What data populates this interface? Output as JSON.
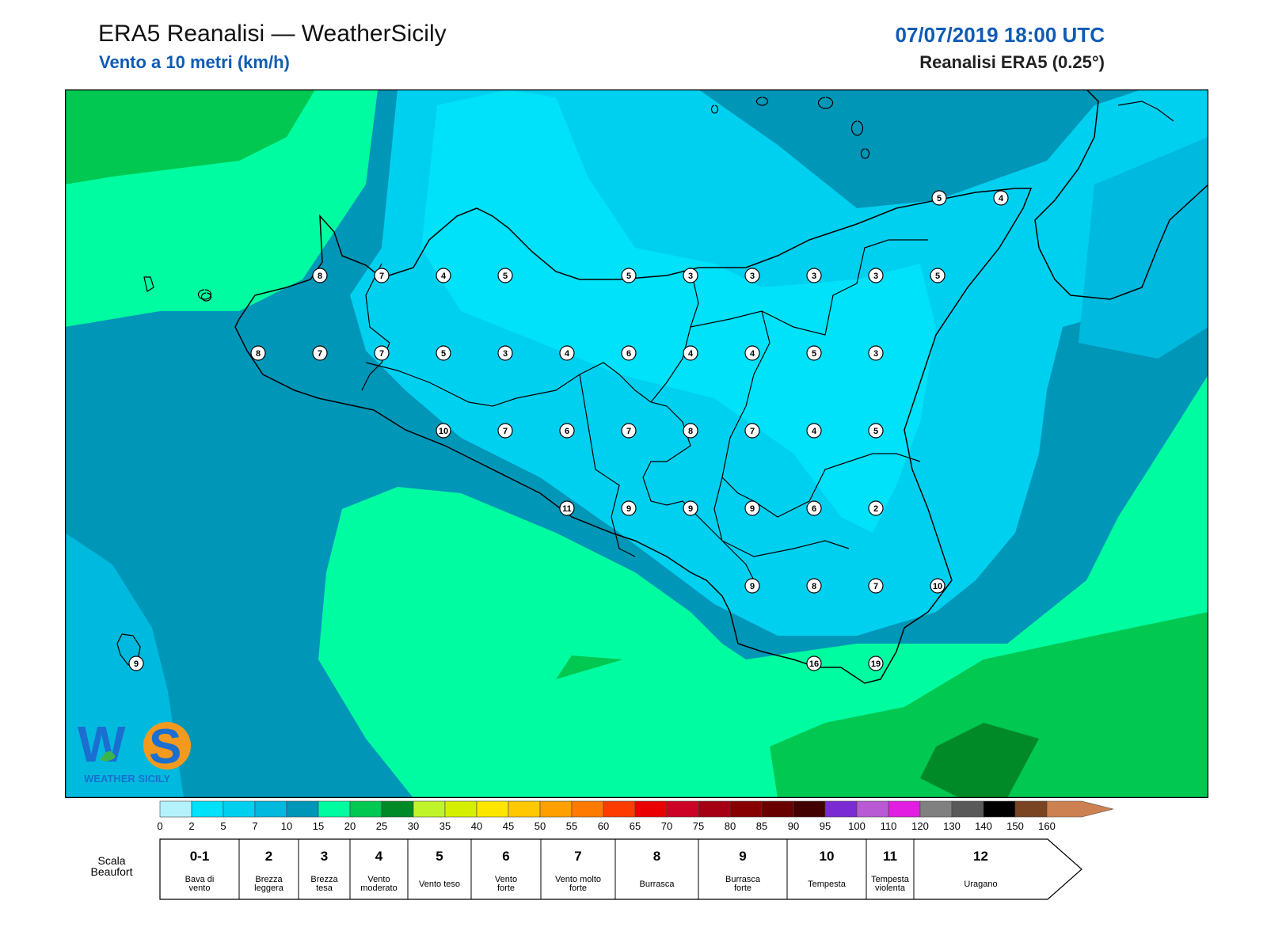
{
  "header": {
    "title": "ERA5 Reanalisi — WeatherSicily",
    "subtitle": "Vento a 10 metri (km/h)",
    "datetime": "07/07/2019 18:00 UTC",
    "source": "Reanalisi ERA5 (0.25°)"
  },
  "station_values": [
    {
      "id": "messina-a",
      "value": "5"
    },
    {
      "id": "messina-b",
      "value": "4"
    },
    {
      "id": "r1c1",
      "value": "8"
    },
    {
      "id": "r1c2",
      "value": "7"
    },
    {
      "id": "r1c3",
      "value": "4"
    },
    {
      "id": "r1c4",
      "value": "5"
    },
    {
      "id": "r1c5",
      "value": "5"
    },
    {
      "id": "r1c6",
      "value": "3"
    },
    {
      "id": "r1c7",
      "value": "3"
    },
    {
      "id": "r1c8",
      "value": "3"
    },
    {
      "id": "r1c9",
      "value": "3"
    },
    {
      "id": "r1c10",
      "value": "5"
    },
    {
      "id": "r2c1",
      "value": "8"
    },
    {
      "id": "r2c2",
      "value": "7"
    },
    {
      "id": "r2c3",
      "value": "7"
    },
    {
      "id": "r2c4",
      "value": "5"
    },
    {
      "id": "r2c5",
      "value": "3"
    },
    {
      "id": "r2c6",
      "value": "4"
    },
    {
      "id": "r2c7",
      "value": "6"
    },
    {
      "id": "r2c8",
      "value": "4"
    },
    {
      "id": "r2c9",
      "value": "4"
    },
    {
      "id": "r2c10",
      "value": "5"
    },
    {
      "id": "r2c11",
      "value": "3"
    },
    {
      "id": "r3c1",
      "value": "10"
    },
    {
      "id": "r3c2",
      "value": "7"
    },
    {
      "id": "r3c3",
      "value": "6"
    },
    {
      "id": "r3c4",
      "value": "7"
    },
    {
      "id": "r3c5",
      "value": "8"
    },
    {
      "id": "r3c6",
      "value": "7"
    },
    {
      "id": "r3c7",
      "value": "4"
    },
    {
      "id": "r3c8",
      "value": "5"
    },
    {
      "id": "r4c1",
      "value": "11"
    },
    {
      "id": "r4c2",
      "value": "9"
    },
    {
      "id": "r4c3",
      "value": "9"
    },
    {
      "id": "r4c4",
      "value": "9"
    },
    {
      "id": "r4c5",
      "value": "6"
    },
    {
      "id": "r4c6",
      "value": "2"
    },
    {
      "id": "r5c1",
      "value": "9"
    },
    {
      "id": "r5c2",
      "value": "8"
    },
    {
      "id": "r5c3",
      "value": "7"
    },
    {
      "id": "r5c4",
      "value": "10"
    },
    {
      "id": "pantelleria",
      "value": "9"
    },
    {
      "id": "s1",
      "value": "16"
    },
    {
      "id": "s2",
      "value": "19"
    }
  ],
  "colorbar": {
    "ticks": [
      "0",
      "2",
      "5",
      "7",
      "10",
      "15",
      "20",
      "25",
      "30",
      "35",
      "40",
      "45",
      "50",
      "55",
      "60",
      "65",
      "70",
      "75",
      "80",
      "85",
      "90",
      "95",
      "100",
      "110",
      "120",
      "130",
      "140",
      "150",
      "160"
    ],
    "colors": [
      "#b3f2fb",
      "#00e1fa",
      "#00d0f0",
      "#00b9de",
      "#0096b8",
      "#00fca0",
      "#00c850",
      "#008a27",
      "#bff528",
      "#d4f000",
      "#ffe600",
      "#ffc800",
      "#ffa000",
      "#ff7a00",
      "#ff3c00",
      "#eb0000",
      "#cd0026",
      "#a60014",
      "#870000",
      "#690000",
      "#430000",
      "#7b2bd4",
      "#b85ad4",
      "#e11ee1",
      "#808080",
      "#595959",
      "#000000",
      "#7a4423",
      "#cd8150"
    ]
  },
  "beaufort": {
    "label": "Scala\nBeaufort",
    "items": [
      {
        "force": "0-1",
        "desc": "Bava di\nvento"
      },
      {
        "force": "2",
        "desc": "Brezza\nleggera"
      },
      {
        "force": "3",
        "desc": "Brezza\ntesa"
      },
      {
        "force": "4",
        "desc": "Vento\nmoderato"
      },
      {
        "force": "5",
        "desc": "Vento teso"
      },
      {
        "force": "6",
        "desc": "Vento\nforte"
      },
      {
        "force": "7",
        "desc": "Vento molto\nforte"
      },
      {
        "force": "8",
        "desc": "Burrasca"
      },
      {
        "force": "9",
        "desc": "Burrasca\nforte"
      },
      {
        "force": "10",
        "desc": "Tempesta"
      },
      {
        "force": "11",
        "desc": "Tempesta\nviolenta"
      },
      {
        "force": "12",
        "desc": "Uragano"
      }
    ]
  },
  "logo": {
    "text": "WEATHER SICILY",
    "mark": "WS"
  }
}
